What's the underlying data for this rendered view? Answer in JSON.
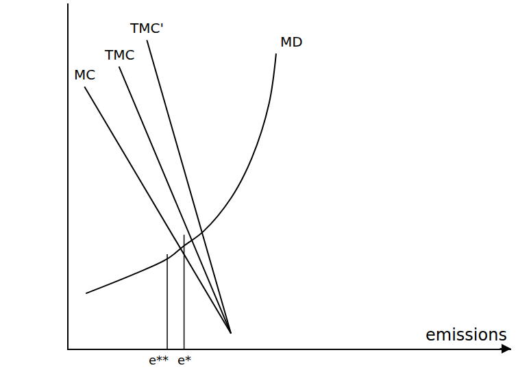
{
  "chart_data": {
    "type": "line",
    "x_label": "emissions",
    "xlim": [
      0,
      100
    ],
    "ylim": [
      0,
      100
    ],
    "xticks": [],
    "yticks": [],
    "tick_labels": false,
    "grid": false,
    "series": [
      {
        "name": "MC",
        "color": "#000000",
        "x": [
          3.6,
          36.7
        ],
        "values": [
          75.9,
          4.4
        ]
      },
      {
        "name": "TMC",
        "color": "#000000",
        "x": [
          11.4,
          36.7
        ],
        "values": [
          81.7,
          4.4
        ]
      },
      {
        "name": "TMC'",
        "color": "#000000",
        "x": [
          17.7,
          36.7
        ],
        "values": [
          89.4,
          4.4
        ]
      },
      {
        "name": "MD",
        "color": "#000000",
        "x": [
          3.9,
          14.8,
          22.3,
          26.1,
          30.5,
          36.7,
          41.4,
          45.3,
          46.9
        ],
        "values": [
          16.0,
          21.6,
          26.0,
          29.8,
          34.0,
          43.6,
          55.2,
          71.0,
          85.5
        ]
      }
    ],
    "vertical_lines": [
      {
        "label": "e**",
        "x": 22.3,
        "y": 27.4
      },
      {
        "label": "e*",
        "x": 26.1,
        "y": 33.0
      }
    ]
  }
}
